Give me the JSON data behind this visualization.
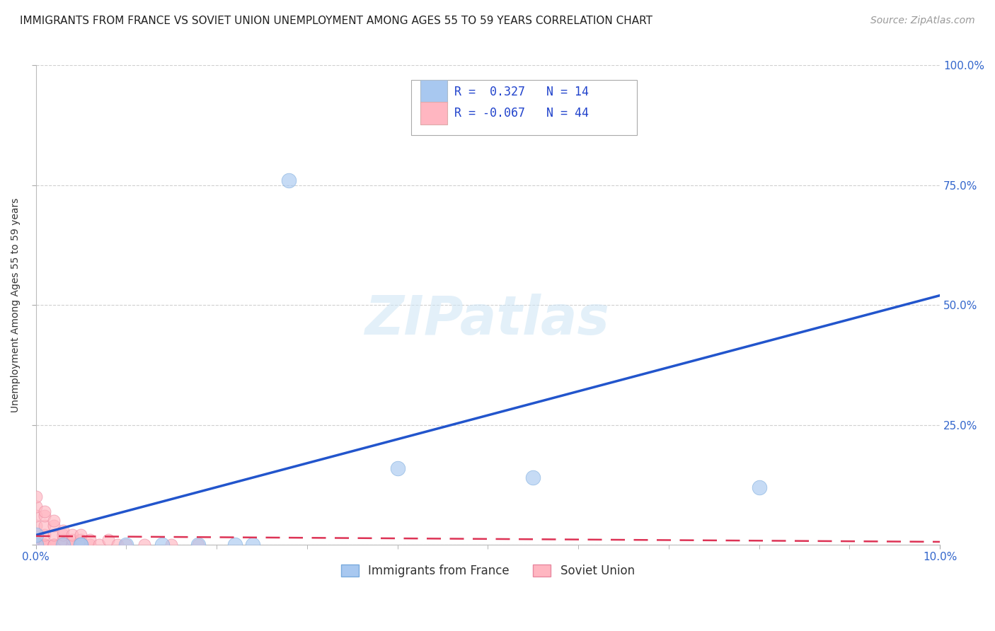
{
  "title": "IMMIGRANTS FROM FRANCE VS SOVIET UNION UNEMPLOYMENT AMONG AGES 55 TO 59 YEARS CORRELATION CHART",
  "source": "Source: ZipAtlas.com",
  "ylabel": "Unemployment Among Ages 55 to 59 years",
  "xlim": [
    0.0,
    0.1
  ],
  "ylim": [
    0.0,
    1.0
  ],
  "xticks": [
    0.0,
    0.1
  ],
  "xtick_labels": [
    "0.0%",
    "10.0%"
  ],
  "yticks": [
    0.0,
    0.25,
    0.5,
    0.75,
    1.0
  ],
  "ytick_labels_right": [
    "",
    "25.0%",
    "50.0%",
    "75.0%",
    "100.0%"
  ],
  "background_color": "#ffffff",
  "grid_color": "#d0d0d0",
  "watermark_text": "ZIPatlas",
  "france_color": "#a8c8f0",
  "france_edge_color": "#7aabdd",
  "france_r": 0.327,
  "france_n": 14,
  "france_scatter_x": [
    0.0,
    0.0,
    0.005,
    0.005,
    0.028,
    0.014,
    0.018,
    0.022,
    0.024,
    0.04,
    0.055,
    0.08,
    0.003,
    0.01
  ],
  "france_scatter_y": [
    0.0,
    0.02,
    0.0,
    0.0,
    0.76,
    0.0,
    0.0,
    0.0,
    0.0,
    0.16,
    0.14,
    0.12,
    0.0,
    0.0
  ],
  "france_line_x": [
    0.0,
    0.1
  ],
  "france_line_y": [
    0.02,
    0.52
  ],
  "soviet_color": "#ffb6c1",
  "soviet_edge_color": "#e888a0",
  "soviet_r": -0.067,
  "soviet_n": 44,
  "soviet_scatter_x": [
    0.0,
    0.0,
    0.0,
    0.0,
    0.0,
    0.0,
    0.0,
    0.0,
    0.0,
    0.0,
    0.001,
    0.001,
    0.001,
    0.001,
    0.001,
    0.001,
    0.001,
    0.002,
    0.002,
    0.002,
    0.002,
    0.002,
    0.002,
    0.003,
    0.003,
    0.003,
    0.003,
    0.003,
    0.004,
    0.004,
    0.004,
    0.004,
    0.005,
    0.005,
    0.005,
    0.006,
    0.006,
    0.007,
    0.008,
    0.009,
    0.01,
    0.012,
    0.015,
    0.018
  ],
  "soviet_scatter_y": [
    0.0,
    0.0,
    0.0,
    0.0,
    0.0,
    0.02,
    0.04,
    0.06,
    0.08,
    0.1,
    0.0,
    0.0,
    0.0,
    0.02,
    0.04,
    0.06,
    0.07,
    0.0,
    0.0,
    0.0,
    0.02,
    0.04,
    0.05,
    0.0,
    0.0,
    0.01,
    0.02,
    0.03,
    0.0,
    0.0,
    0.01,
    0.02,
    0.0,
    0.01,
    0.02,
    0.0,
    0.01,
    0.0,
    0.01,
    0.0,
    0.0,
    0.0,
    0.0,
    0.0
  ],
  "soviet_line_x": [
    0.0,
    0.1
  ],
  "soviet_line_y": [
    0.018,
    0.006
  ],
  "france_legend_label": "Immigrants from France",
  "soviet_legend_label": "Soviet Union",
  "title_fontsize": 11,
  "axis_label_fontsize": 10,
  "tick_fontsize": 11,
  "source_fontsize": 10,
  "legend_fontsize": 12,
  "watermark_fontsize": 55
}
